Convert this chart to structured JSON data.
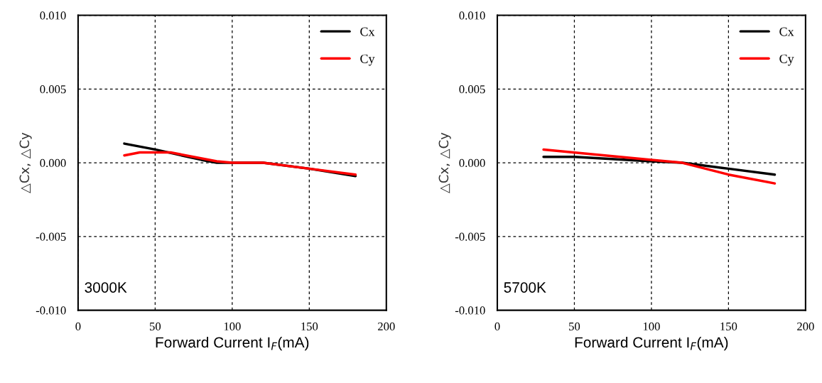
{
  "chart_data": [
    {
      "type": "line",
      "xlabel": "Forward Current I$_{F}$(mA)",
      "ylabel": "△Cx, △Cy",
      "annotations": [
        "3000K"
      ],
      "xlim": [
        0,
        200
      ],
      "xticks": [
        0,
        50,
        100,
        150,
        200
      ],
      "ylim": [
        -0.01,
        0.01
      ],
      "yticks": [
        {
          "value": -0.01,
          "label": "-0.010"
        },
        {
          "value": -0.005,
          "label": "-0.005"
        },
        {
          "value": 0,
          "label": "0.000"
        },
        {
          "value": 0.005,
          "label": "0.005"
        },
        {
          "value": 0.01,
          "label": "0.010"
        }
      ],
      "grid": true,
      "legend": "top right",
      "line_style": "solid",
      "marker": "none",
      "series": [
        {
          "name": "Cx",
          "color": "#000000",
          "x": [
            30,
            50,
            80,
            90,
            120,
            150,
            180
          ],
          "values": [
            0.0013,
            0.0009,
            0.0002,
            0.0,
            0.0,
            -0.0004,
            -0.0009
          ]
        },
        {
          "name": "Cy",
          "color": "#ff0000",
          "x": [
            30,
            40,
            60,
            90,
            100,
            120,
            150,
            180
          ],
          "values": [
            0.0005,
            0.0007,
            0.0007,
            0.0001,
            0.0,
            0.0,
            -0.0004,
            -0.0008
          ]
        }
      ]
    },
    {
      "type": "line",
      "xlabel": "Forward Current I$_{F}$(mA)",
      "ylabel": "△Cx, △Cy",
      "annotations": [
        "5700K"
      ],
      "xlim": [
        0,
        200
      ],
      "xticks": [
        0,
        50,
        100,
        150,
        200
      ],
      "ylim": [
        -0.01,
        0.01
      ],
      "yticks": [
        {
          "value": -0.01,
          "label": "-0.010"
        },
        {
          "value": -0.005,
          "label": "-0.005"
        },
        {
          "value": 0,
          "label": "0.000"
        },
        {
          "value": 0.005,
          "label": "0.005"
        },
        {
          "value": 0.01,
          "label": "0.010"
        }
      ],
      "grid": true,
      "legend": "top right",
      "line_style": "solid",
      "marker": "none",
      "series": [
        {
          "name": "Cx",
          "color": "#000000",
          "x": [
            30,
            50,
            100,
            120,
            150,
            180
          ],
          "values": [
            0.0004,
            0.0004,
            0.0001,
            0.0,
            -0.0004,
            -0.0008
          ]
        },
        {
          "name": "Cy",
          "color": "#ff0000",
          "x": [
            30,
            100,
            120,
            150,
            180
          ],
          "values": [
            0.0009,
            0.0002,
            0.0,
            -0.0008,
            -0.0014
          ]
        }
      ]
    }
  ]
}
